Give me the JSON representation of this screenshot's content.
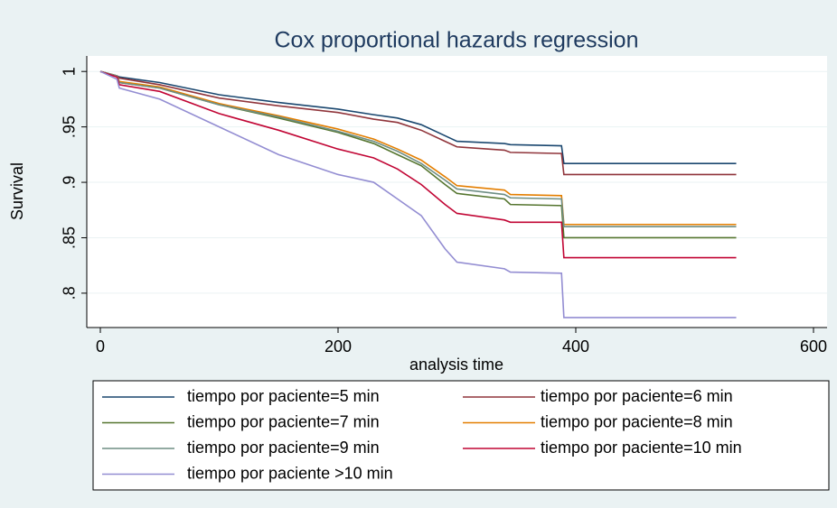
{
  "chart_data": {
    "type": "line",
    "step": false,
    "title": "Cox proportional hazards regression",
    "xlabel": "analysis time",
    "ylabel": "Survival",
    "x": [
      0,
      14,
      16,
      50,
      100,
      150,
      200,
      230,
      250,
      270,
      290,
      300,
      340,
      345,
      388,
      390,
      535
    ],
    "series": [
      {
        "name": "tiempo por paciente=5 min",
        "color": "#1a476f",
        "values": [
          1,
          0.996,
          0.995,
          0.99,
          0.979,
          0.972,
          0.966,
          0.961,
          0.958,
          0.952,
          0.942,
          0.937,
          0.935,
          0.934,
          0.933,
          0.917,
          0.917
        ]
      },
      {
        "name": "tiempo por paciente=6 min",
        "color": "#90353b",
        "values": [
          1,
          0.996,
          0.994,
          0.988,
          0.976,
          0.969,
          0.963,
          0.957,
          0.954,
          0.947,
          0.937,
          0.932,
          0.929,
          0.927,
          0.926,
          0.907,
          0.907
        ]
      },
      {
        "name": "tiempo por paciente=7 min",
        "color": "#55752f",
        "values": [
          1,
          0.996,
          0.99,
          0.985,
          0.97,
          0.958,
          0.945,
          0.935,
          0.925,
          0.915,
          0.898,
          0.89,
          0.885,
          0.88,
          0.879,
          0.85,
          0.85
        ]
      },
      {
        "name": "tiempo por paciente=8 min",
        "color": "#e37e00",
        "values": [
          1,
          0.996,
          0.991,
          0.986,
          0.971,
          0.96,
          0.948,
          0.939,
          0.93,
          0.92,
          0.905,
          0.897,
          0.893,
          0.889,
          0.888,
          0.862,
          0.862
        ]
      },
      {
        "name": "tiempo por paciente=9 min",
        "color": "#6e8e84",
        "values": [
          1,
          0.996,
          0.99,
          0.985,
          0.97,
          0.959,
          0.946,
          0.937,
          0.928,
          0.917,
          0.902,
          0.894,
          0.889,
          0.886,
          0.885,
          0.86,
          0.86
        ]
      },
      {
        "name": "tiempo por paciente=10 min",
        "color": "#c10534",
        "values": [
          1,
          0.995,
          0.988,
          0.982,
          0.962,
          0.947,
          0.93,
          0.922,
          0.912,
          0.898,
          0.88,
          0.872,
          0.866,
          0.864,
          0.864,
          0.832,
          0.832
        ]
      },
      {
        "name": "tiempo por paciente >10 min",
        "color": "#938dd2",
        "values": [
          1,
          0.993,
          0.985,
          0.975,
          0.95,
          0.925,
          0.907,
          0.9,
          0.885,
          0.87,
          0.84,
          0.828,
          0.822,
          0.819,
          0.818,
          0.778,
          0.778
        ]
      }
    ],
    "xlim": [
      -11.4,
      611.4
    ],
    "xticks": [
      0,
      200,
      400,
      600
    ],
    "ylim": [
      0.769,
      1.014
    ],
    "yticks": [
      {
        "value": 0.8,
        "label": ".8"
      },
      {
        "value": 0.85,
        "label": ".85"
      },
      {
        "value": 0.9,
        "label": ".9"
      },
      {
        "value": 0.95,
        "label": ".95"
      },
      1
    ],
    "grid": true,
    "legend": "bottom"
  }
}
